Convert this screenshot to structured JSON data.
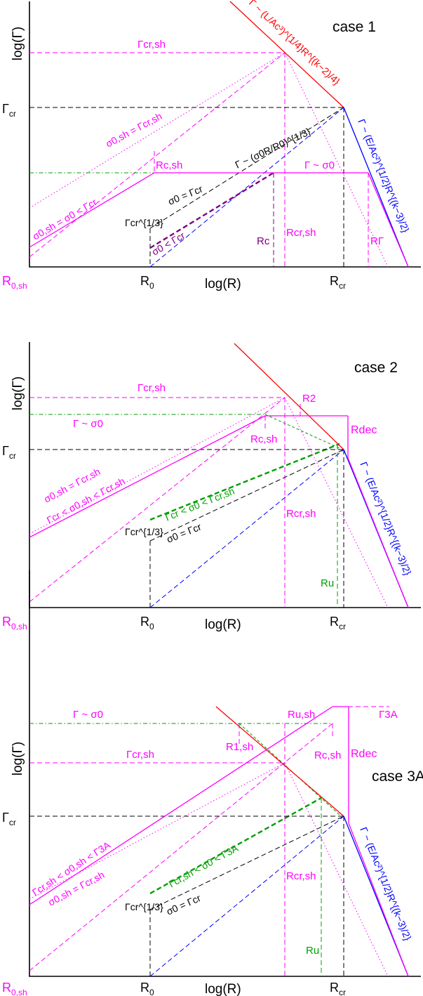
{
  "colors": {
    "black": "#000000",
    "red": "#ff0000",
    "blue": "#0000ff",
    "magenta": "#ff00ff",
    "green": "#00a000",
    "purple": "#800080"
  },
  "panels": [
    {
      "case_label": "case 1",
      "y_axis": {
        "label": "log(Γ)",
        "tick": {
          "base": "Γ",
          "sub": "cr"
        }
      },
      "x_axis": {
        "label": "log(R)",
        "ticks": [
          {
            "base": "R",
            "sub": "0,sh",
            "color": "magenta"
          },
          {
            "base": "R",
            "sub": "0",
            "color": "black"
          },
          {
            "base": "R",
            "sub": "cr",
            "color": "black"
          }
        ]
      },
      "annotations": {
        "red_line": "Γ ~ (L/Ac³)^{1/4}R^{(k−2)/4}",
        "blue_line": "Γ ~ (E/Ac²)^{1/2}R^{(k−3)/2}",
        "gamma_cr_sh": "Γcr,sh",
        "sigma_eq_sh": "σ0,sh = Γcr,sh",
        "sigma_lt": "σ0,sh = σ0 < Γcr",
        "r_c_sh": "Rc,sh",
        "black_dashed": "Γ ~ (σ0R/R0)^{1/3}",
        "gamma_sigma": "Γ ~ σ0",
        "sigma_eq_cr": "σ0 = Γcr",
        "gamma_cr_13": "Γcr^{1/3}",
        "sigma_lt_cr": "σ0 < Γcr",
        "r_c": "Rc",
        "r_cr_sh": "Rcr,sh",
        "r_gamma": "RΓ"
      }
    },
    {
      "case_label": "case 2",
      "y_axis": {
        "label": "log(Γ)",
        "tick": {
          "base": "Γ",
          "sub": "cr"
        }
      },
      "x_axis": {
        "label": "log(R)",
        "ticks": [
          {
            "base": "R",
            "sub": "0,sh",
            "color": "magenta"
          },
          {
            "base": "R",
            "sub": "0",
            "color": "black"
          },
          {
            "base": "R",
            "sub": "cr",
            "color": "black"
          }
        ]
      },
      "annotations": {
        "gamma_cr_sh": "Γcr,sh",
        "r_2": "R2",
        "gamma_sigma": "Γ ~ σ0",
        "r_c_sh": "Rc,sh",
        "r_dec": "Rdec",
        "blue_line": "Γ ~ (E/Ac²)^{1/2}R^{(k−3)/2}",
        "sigma_eq_sh": "σ0,sh = Γcr,sh",
        "sigma_range_sh": "Γcr < σ0,sh < Γcr,sh",
        "sigma_range": "Γcr < σ0 < Γcr,sh",
        "sigma_eq_cr": "σ0 = Γcr",
        "gamma_cr_13": "Γcr^{1/3}",
        "r_cr_sh": "Rcr,sh",
        "r_u": "Ru"
      }
    },
    {
      "case_label": "case 3A",
      "y_axis": {
        "label": "log(Γ)",
        "tick": {
          "base": "Γ",
          "sub": "cr"
        }
      },
      "x_axis": {
        "label": "log(R)",
        "ticks": [
          {
            "base": "R",
            "sub": "0,sh",
            "color": "magenta"
          },
          {
            "base": "R",
            "sub": "0",
            "color": "black"
          },
          {
            "base": "R",
            "sub": "cr",
            "color": "black"
          }
        ]
      },
      "annotations": {
        "gamma_sigma": "Γ ~ σ0",
        "r_u_sh": "Ru,sh",
        "gamma_3a": "Γ3A",
        "r_1_sh": "R1,sh",
        "r_c_sh": "Rc,sh",
        "r_dec": "Rdec",
        "gamma_cr_sh": "Γcr,sh",
        "blue_line": "Γ ~ (E/Ac²)^{1/2}R^{(k−3)/2}",
        "sigma_range_sh": "Γcr,sh < σ0,sh < Γ3A",
        "sigma_eq_sh": "σ0,sh = Γcr,sh",
        "sigma_range": "Γcr,sh < σ0 < Γ3A",
        "sigma_eq_cr": "σ0 = Γcr",
        "gamma_cr_13": "Γcr^{1/3}",
        "r_cr_sh": "Rcr,sh",
        "r_u": "Ru"
      }
    }
  ]
}
